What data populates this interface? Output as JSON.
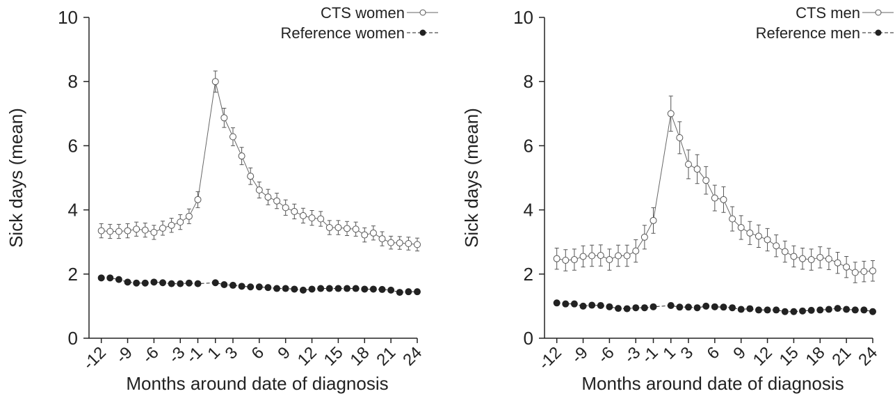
{
  "chart_data": [
    {
      "type": "line",
      "ylabel": "Sick days (mean)",
      "xlabel": "Months around date of diagnosis",
      "x": [
        -12,
        -11,
        -10,
        -9,
        -8,
        -7,
        -6,
        -5,
        -4,
        -3,
        -2,
        -1,
        1,
        2,
        3,
        4,
        5,
        6,
        7,
        8,
        9,
        10,
        11,
        12,
        13,
        14,
        15,
        16,
        17,
        18,
        19,
        20,
        21,
        22,
        23,
        24
      ],
      "xlim": [
        -13.4,
        24
      ],
      "xticks": [
        -12,
        -9,
        -6,
        -3,
        -1,
        1,
        3,
        6,
        9,
        12,
        15,
        18,
        21,
        24
      ],
      "ylim": [
        0,
        10
      ],
      "yticks": [
        0,
        2,
        4,
        6,
        8,
        10
      ],
      "legend": "upper right",
      "series": [
        {
          "name": "CTS women",
          "color": "#666666",
          "marker": "open",
          "dashed": false,
          "values": [
            3.35,
            3.33,
            3.33,
            3.35,
            3.4,
            3.37,
            3.3,
            3.43,
            3.52,
            3.62,
            3.8,
            4.32,
            8.0,
            6.87,
            6.28,
            5.68,
            5.05,
            4.62,
            4.4,
            4.28,
            4.07,
            3.95,
            3.82,
            3.75,
            3.72,
            3.45,
            3.45,
            3.42,
            3.4,
            3.22,
            3.28,
            3.1,
            2.98,
            2.97,
            2.95,
            2.92
          ],
          "errors": [
            0.22,
            0.22,
            0.22,
            0.22,
            0.22,
            0.22,
            0.22,
            0.22,
            0.22,
            0.23,
            0.23,
            0.25,
            0.33,
            0.3,
            0.28,
            0.27,
            0.26,
            0.25,
            0.24,
            0.24,
            0.24,
            0.23,
            0.23,
            0.23,
            0.23,
            0.22,
            0.22,
            0.22,
            0.22,
            0.22,
            0.22,
            0.22,
            0.2,
            0.2,
            0.2,
            0.2
          ]
        },
        {
          "name": "Reference women",
          "color": "#222222",
          "marker": "filled",
          "dashed": true,
          "values": [
            1.88,
            1.88,
            1.83,
            1.75,
            1.72,
            1.72,
            1.75,
            1.73,
            1.7,
            1.7,
            1.72,
            1.7,
            1.73,
            1.67,
            1.65,
            1.62,
            1.6,
            1.6,
            1.58,
            1.55,
            1.55,
            1.53,
            1.5,
            1.53,
            1.55,
            1.55,
            1.55,
            1.55,
            1.55,
            1.53,
            1.53,
            1.52,
            1.5,
            1.43,
            1.45,
            1.45
          ],
          "errors": [
            0.07,
            0.07,
            0.07,
            0.07,
            0.07,
            0.07,
            0.07,
            0.07,
            0.07,
            0.07,
            0.07,
            0.07,
            0.07,
            0.07,
            0.07,
            0.07,
            0.07,
            0.07,
            0.07,
            0.07,
            0.07,
            0.07,
            0.07,
            0.07,
            0.07,
            0.07,
            0.07,
            0.07,
            0.07,
            0.07,
            0.07,
            0.07,
            0.07,
            0.07,
            0.07,
            0.07
          ]
        }
      ]
    },
    {
      "type": "line",
      "ylabel": "Sick days (mean)",
      "xlabel": "Months around date of diagnosis",
      "x": [
        -12,
        -11,
        -10,
        -9,
        -8,
        -7,
        -6,
        -5,
        -4,
        -3,
        -2,
        -1,
        1,
        2,
        3,
        4,
        5,
        6,
        7,
        8,
        9,
        10,
        11,
        12,
        13,
        14,
        15,
        16,
        17,
        18,
        19,
        20,
        21,
        22,
        23,
        24
      ],
      "xlim": [
        -13.4,
        24
      ],
      "xticks": [
        -12,
        -9,
        -6,
        -3,
        -1,
        1,
        3,
        6,
        9,
        12,
        15,
        18,
        21,
        24
      ],
      "ylim": [
        0,
        10
      ],
      "yticks": [
        0,
        2,
        4,
        6,
        8,
        10
      ],
      "legend": "upper right",
      "series": [
        {
          "name": "CTS men",
          "color": "#666666",
          "marker": "open",
          "dashed": false,
          "values": [
            2.48,
            2.43,
            2.45,
            2.55,
            2.57,
            2.58,
            2.45,
            2.57,
            2.57,
            2.72,
            3.15,
            3.67,
            7.0,
            6.25,
            5.42,
            5.27,
            4.92,
            4.37,
            4.32,
            3.72,
            3.45,
            3.28,
            3.18,
            3.07,
            2.88,
            2.7,
            2.55,
            2.48,
            2.45,
            2.52,
            2.47,
            2.35,
            2.22,
            2.05,
            2.08,
            2.1
          ],
          "errors": [
            0.33,
            0.33,
            0.33,
            0.33,
            0.33,
            0.33,
            0.33,
            0.33,
            0.33,
            0.35,
            0.37,
            0.4,
            0.55,
            0.5,
            0.45,
            0.45,
            0.43,
            0.4,
            0.4,
            0.38,
            0.37,
            0.36,
            0.35,
            0.35,
            0.34,
            0.33,
            0.33,
            0.33,
            0.33,
            0.33,
            0.33,
            0.33,
            0.33,
            0.32,
            0.32,
            0.32
          ]
        },
        {
          "name": "Reference men",
          "color": "#222222",
          "marker": "filled",
          "dashed": true,
          "values": [
            1.1,
            1.07,
            1.07,
            1.0,
            1.03,
            1.02,
            0.98,
            0.93,
            0.92,
            0.95,
            0.95,
            0.98,
            1.02,
            0.97,
            0.97,
            0.95,
            1.0,
            0.98,
            0.97,
            0.95,
            0.9,
            0.92,
            0.88,
            0.88,
            0.88,
            0.83,
            0.83,
            0.85,
            0.87,
            0.88,
            0.9,
            0.93,
            0.9,
            0.88,
            0.88,
            0.83
          ],
          "errors": [
            0.08,
            0.08,
            0.08,
            0.08,
            0.08,
            0.08,
            0.08,
            0.08,
            0.08,
            0.08,
            0.08,
            0.08,
            0.08,
            0.08,
            0.08,
            0.08,
            0.08,
            0.08,
            0.08,
            0.08,
            0.08,
            0.08,
            0.08,
            0.08,
            0.08,
            0.08,
            0.08,
            0.08,
            0.08,
            0.08,
            0.08,
            0.08,
            0.08,
            0.08,
            0.08,
            0.08
          ]
        }
      ]
    }
  ]
}
